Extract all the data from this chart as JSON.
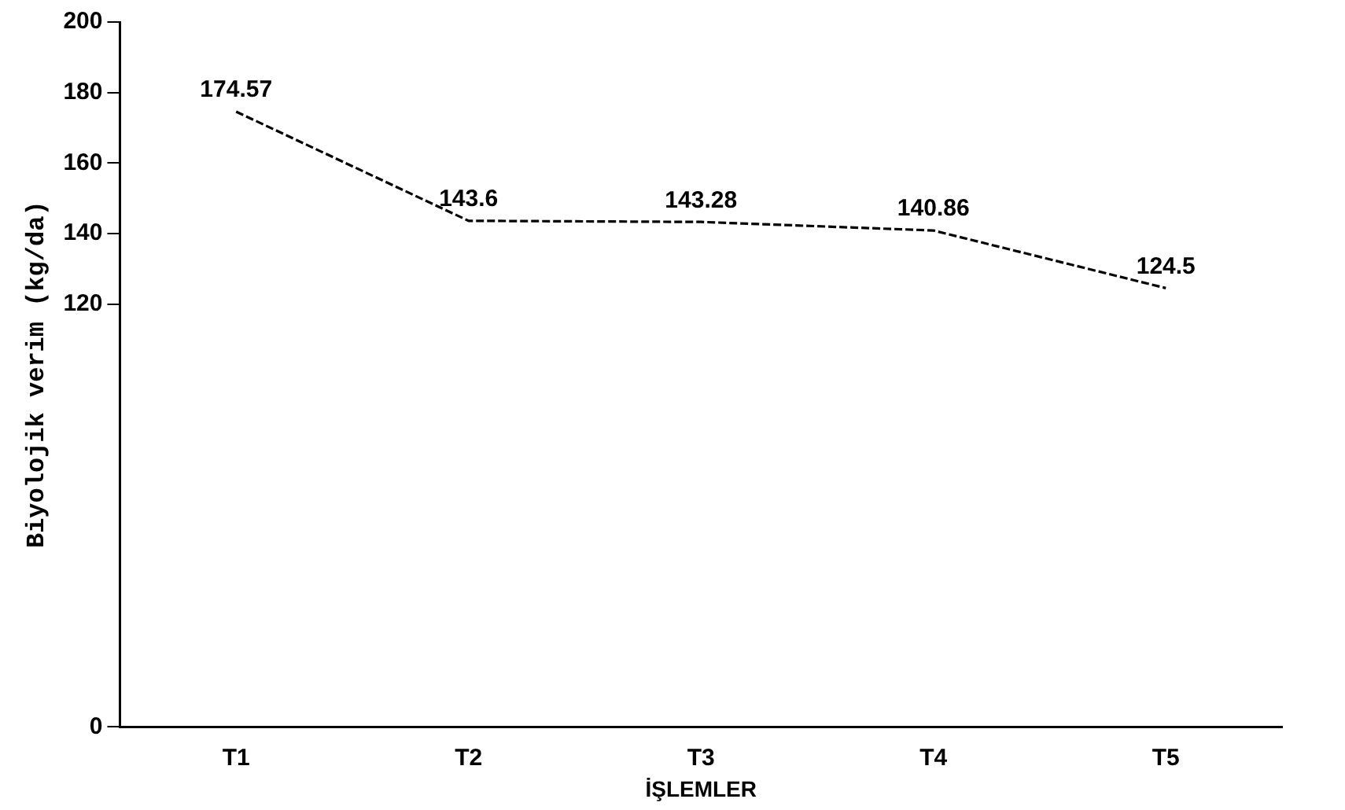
{
  "chart_data": {
    "type": "line",
    "xlabel": "İŞLEMLER",
    "ylabel": "Biyolojik verim (kg/da)",
    "categories": [
      "T1",
      "T2",
      "T3",
      "T4",
      "T5"
    ],
    "series": [
      {
        "color": "#000000",
        "values": [
          174.57,
          143.6,
          143.28,
          140.86,
          124.5
        ]
      }
    ],
    "ylim": [
      0,
      200
    ],
    "yticks": [
      0,
      120,
      140,
      160,
      180,
      200
    ],
    "data_labels": true,
    "grid": false,
    "legend": false,
    "marker": "none",
    "line_style": "dashed"
  }
}
